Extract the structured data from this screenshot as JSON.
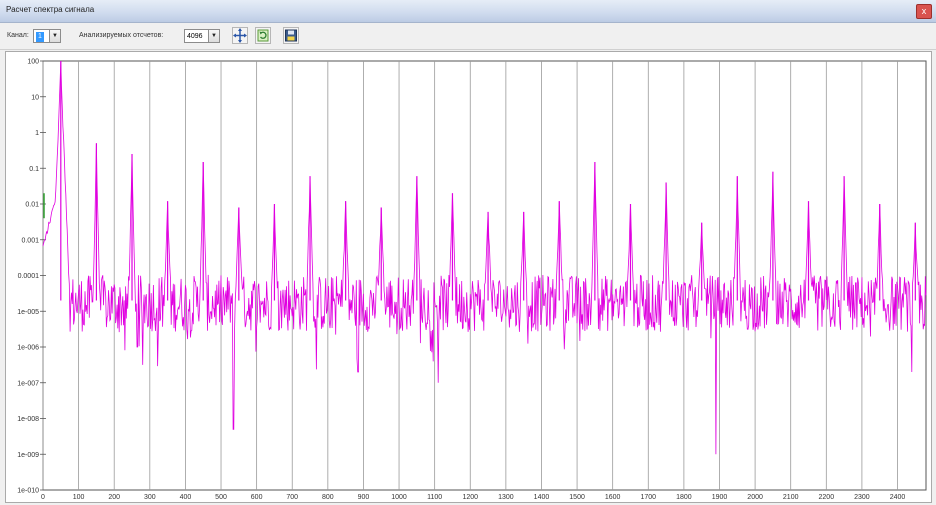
{
  "window": {
    "title": "Расчет спектра сигнала",
    "close_label": "x"
  },
  "toolbar": {
    "channel_label": "Канал:",
    "channel_value": "1",
    "samples_label": "Анализируемых отсчетов:",
    "samples_value": "4096",
    "buttons": [
      {
        "name": "pan-button",
        "icon": "move-cross-icon"
      },
      {
        "name": "refresh-button",
        "icon": "refresh-icon"
      },
      {
        "name": "save-button",
        "icon": "floppy-disk-icon"
      }
    ]
  },
  "colors": {
    "series": "#e000e0",
    "grid": "#9a9a9a",
    "window_bg": "#f0f0f0"
  },
  "chart_data": {
    "type": "line",
    "title": "",
    "xlabel": "",
    "ylabel": "",
    "y_scale": "log",
    "ylim": [
      1e-10,
      100
    ],
    "xlim": [
      0,
      2480
    ],
    "grid": true,
    "y_ticks": [
      "100",
      "10",
      "1",
      "0.1",
      "0.01",
      "0.001",
      "0.0001",
      "1e-005",
      "1e-006",
      "1e-007",
      "1e-008",
      "1e-009",
      "1e-010"
    ],
    "x_ticks": [
      "0",
      "100",
      "200",
      "300",
      "400",
      "500",
      "600",
      "700",
      "800",
      "900",
      "1000",
      "1100",
      "1200",
      "1300",
      "1400",
      "1500",
      "1600",
      "1700",
      "1800",
      "1900",
      "2000",
      "2100",
      "2200",
      "2300",
      "2400"
    ],
    "series": [
      {
        "peaks": [
          {
            "x": 50,
            "y": 100
          },
          {
            "x": 150,
            "y": 0.5
          },
          {
            "x": 250,
            "y": 0.25
          },
          {
            "x": 350,
            "y": 0.012
          },
          {
            "x": 450,
            "y": 0.15
          },
          {
            "x": 550,
            "y": 0.008
          },
          {
            "x": 650,
            "y": 0.01
          },
          {
            "x": 750,
            "y": 0.06
          },
          {
            "x": 850,
            "y": 0.012
          },
          {
            "x": 950,
            "y": 0.008
          },
          {
            "x": 1050,
            "y": 0.06
          },
          {
            "x": 1150,
            "y": 0.02
          },
          {
            "x": 1250,
            "y": 0.006
          },
          {
            "x": 1350,
            "y": 0.006
          },
          {
            "x": 1450,
            "y": 0.012
          },
          {
            "x": 1550,
            "y": 0.15
          },
          {
            "x": 1650,
            "y": 0.01
          },
          {
            "x": 1750,
            "y": 0.04
          },
          {
            "x": 1850,
            "y": 0.003
          },
          {
            "x": 1950,
            "y": 0.06
          },
          {
            "x": 2050,
            "y": 0.08
          },
          {
            "x": 2150,
            "y": 0.012
          },
          {
            "x": 2250,
            "y": 0.06
          },
          {
            "x": 2350,
            "y": 0.01
          },
          {
            "x": 2450,
            "y": 0.003
          }
        ],
        "noise_floor": 2e-05,
        "dips": [
          {
            "x": 265,
            "y": 1e-06
          },
          {
            "x": 535,
            "y": 5e-09
          },
          {
            "x": 885,
            "y": 2e-07
          },
          {
            "x": 1110,
            "y": 1e-07
          },
          {
            "x": 1890,
            "y": 1e-09
          },
          {
            "x": 2440,
            "y": 2e-07
          }
        ]
      }
    ]
  }
}
